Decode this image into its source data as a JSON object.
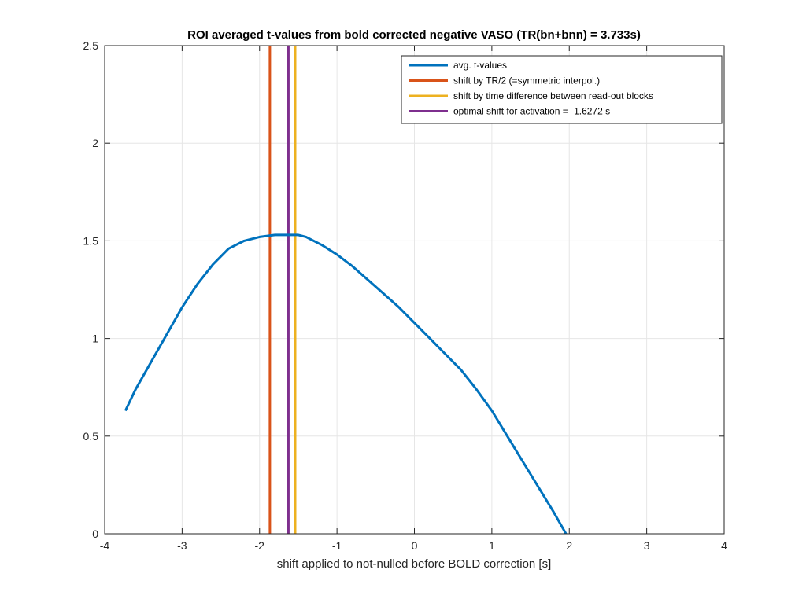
{
  "chart_data": {
    "type": "line",
    "title": "ROI averaged t-values from bold corrected negative VASO (TR(bn+bnn) = 3.733s)",
    "xlabel": "shift applied to not-nulled before BOLD correction [s]",
    "ylabel": "",
    "xlim": [
      -4,
      4
    ],
    "ylim": [
      0,
      2.5
    ],
    "xticks": [
      -4,
      -3,
      -2,
      -1,
      0,
      1,
      2,
      3,
      4
    ],
    "xtick_labels": [
      "-4",
      "-3",
      "-2",
      "-1",
      "0",
      "1",
      "2",
      "3",
      "4"
    ],
    "yticks": [
      0,
      0.5,
      1,
      1.5,
      2,
      2.5
    ],
    "ytick_labels": [
      "0",
      "0.5",
      "1",
      "1.5",
      "2",
      "2.5"
    ],
    "grid": true,
    "legend_position": "top-right",
    "series": [
      {
        "name": "avg. t-values",
        "color": "#0072BD",
        "kind": "line",
        "x": [
          -3.733,
          -3.6,
          -3.4,
          -3.2,
          -3.0,
          -2.8,
          -2.6,
          -2.4,
          -2.2,
          -2.0,
          -1.8,
          -1.6,
          -1.5,
          -1.4,
          -1.2,
          -1.0,
          -0.8,
          -0.6,
          -0.4,
          -0.2,
          0.0,
          0.2,
          0.4,
          0.6,
          0.8,
          1.0,
          1.2,
          1.4,
          1.6,
          1.8,
          2.0,
          2.15
        ],
        "y": [
          0.63,
          0.74,
          0.88,
          1.02,
          1.16,
          1.28,
          1.38,
          1.46,
          1.5,
          1.52,
          1.53,
          1.53,
          1.53,
          1.52,
          1.48,
          1.43,
          1.37,
          1.3,
          1.23,
          1.16,
          1.08,
          1.0,
          0.92,
          0.84,
          0.74,
          0.63,
          0.5,
          0.37,
          0.24,
          0.11,
          -0.03,
          -0.13
        ]
      },
      {
        "name": "shift by TR/2 (=symmetric interpol.)",
        "color": "#D95319",
        "kind": "vline",
        "x": -1.8665
      },
      {
        "name": "shift by time difference between read-out blocks",
        "color": "#EDB120",
        "kind": "vline",
        "x": -1.54
      },
      {
        "name": "optimal shift for activation = -1.6272 s",
        "color": "#7E2F8E",
        "kind": "vline",
        "x": -1.6272
      }
    ]
  }
}
